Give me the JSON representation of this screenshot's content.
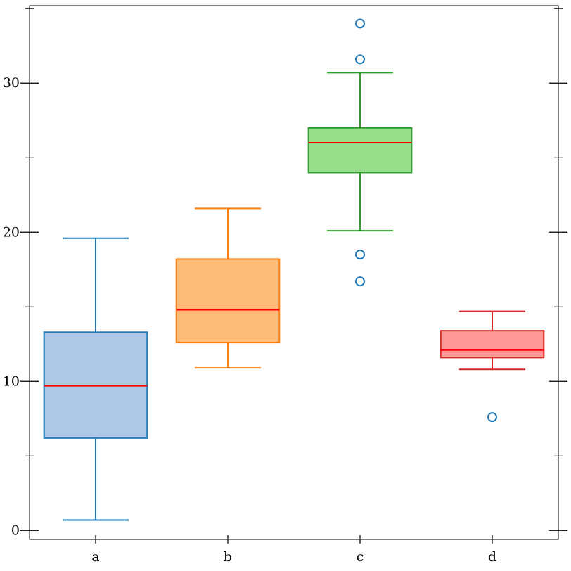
{
  "chart_data": {
    "type": "box",
    "title": "",
    "xlabel": "",
    "ylabel": "",
    "ylim": [
      -0.6,
      35.2
    ],
    "yticks_major": [
      0,
      10,
      20,
      30
    ],
    "yticks_minor": [
      5,
      15,
      25,
      35
    ],
    "categories": [
      "a",
      "b",
      "c",
      "d"
    ],
    "boxes": [
      {
        "category": "a",
        "whisker_low": 0.7,
        "q1": 6.2,
        "median": 9.7,
        "q3": 13.3,
        "whisker_high": 19.6,
        "outliers": [],
        "fill": "#aec7e8",
        "stroke": "#1f77b4"
      },
      {
        "category": "b",
        "whisker_low": 10.9,
        "q1": 12.6,
        "median": 14.8,
        "q3": 18.2,
        "whisker_high": 21.6,
        "outliers": [],
        "fill": "#ffbb78",
        "stroke": "#ff7f0e"
      },
      {
        "category": "c",
        "whisker_low": 20.1,
        "q1": 24.0,
        "median": 26.0,
        "q3": 27.0,
        "whisker_high": 30.7,
        "outliers": [
          34.0,
          31.6,
          18.5,
          16.7
        ],
        "fill": "#98df8a",
        "stroke": "#2ca02c"
      },
      {
        "category": "d",
        "whisker_low": 10.8,
        "q1": 11.6,
        "median": 12.1,
        "q3": 13.4,
        "whisker_high": 14.7,
        "outliers": [
          7.6
        ],
        "fill": "#ff9896",
        "stroke": "#d62728"
      }
    ],
    "median_color": "#ff0000",
    "outlier_color": "#1f77b4",
    "grid": false,
    "legend": "none"
  }
}
